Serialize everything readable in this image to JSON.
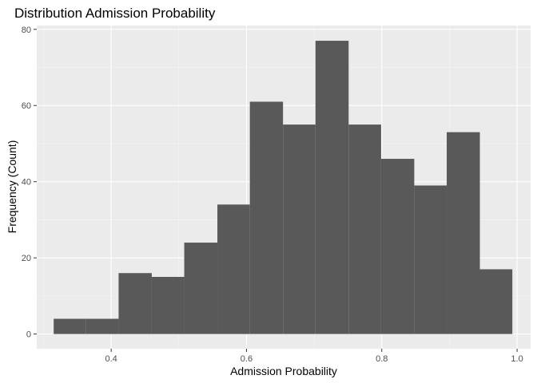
{
  "chart_data": {
    "type": "bar",
    "title": "Distribution Admission Probability",
    "xlabel": "Admission Probability",
    "ylabel": "Frequency (Count)",
    "xlim": [
      0.29,
      1.02
    ],
    "ylim": [
      -3.85,
      81.0
    ],
    "x_ticks": [
      0.4,
      0.6,
      0.8,
      1.0
    ],
    "x_tick_labels": [
      "0.4",
      "0.6",
      "0.8",
      "1.0"
    ],
    "y_ticks": [
      0,
      20,
      40,
      60,
      80
    ],
    "y_tick_labels": [
      "0",
      "20",
      "40",
      "60",
      "80"
    ],
    "bins": [
      {
        "x0": 0.315,
        "x1": 0.363,
        "count": 4
      },
      {
        "x0": 0.363,
        "x1": 0.411,
        "count": 4
      },
      {
        "x0": 0.411,
        "x1": 0.46,
        "count": 16
      },
      {
        "x0": 0.46,
        "x1": 0.508,
        "count": 15
      },
      {
        "x0": 0.508,
        "x1": 0.557,
        "count": 24
      },
      {
        "x0": 0.557,
        "x1": 0.605,
        "count": 34
      },
      {
        "x0": 0.605,
        "x1": 0.654,
        "count": 61
      },
      {
        "x0": 0.654,
        "x1": 0.702,
        "count": 55
      },
      {
        "x0": 0.702,
        "x1": 0.751,
        "count": 77
      },
      {
        "x0": 0.751,
        "x1": 0.799,
        "count": 55
      },
      {
        "x0": 0.799,
        "x1": 0.848,
        "count": 46
      },
      {
        "x0": 0.848,
        "x1": 0.896,
        "count": 39
      },
      {
        "x0": 0.896,
        "x1": 0.945,
        "count": 53
      },
      {
        "x0": 0.945,
        "x1": 0.993,
        "count": 17
      }
    ],
    "grid": true,
    "colors": {
      "bar": "#595959",
      "panel_background": "#ebebeb",
      "grid_major": "#ffffff",
      "grid_minor": "#f5f5f5",
      "tick_label": "#4d4d4d"
    }
  }
}
